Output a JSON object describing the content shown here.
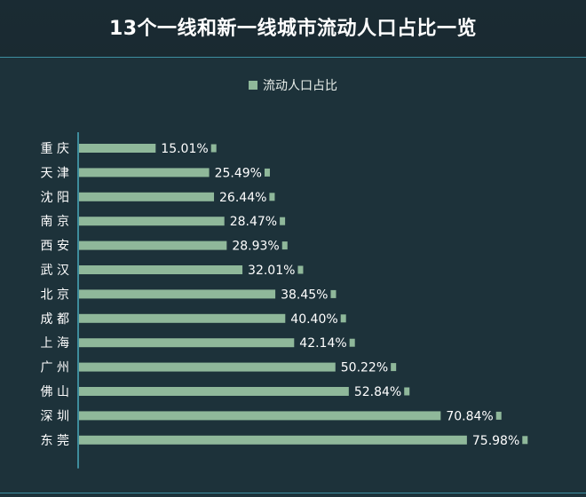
{
  "chart_data": {
    "type": "bar",
    "orientation": "horizontal",
    "title": "13个一线和新一线城市流动人口占比一览",
    "legend": [
      "流动人口占比"
    ],
    "legend_position": "top-center",
    "categories": [
      "重庆",
      "天津",
      "沈阳",
      "南京",
      "西安",
      "武汉",
      "北京",
      "成都",
      "上海",
      "广州",
      "佛山",
      "深圳",
      "东莞"
    ],
    "category_labels": [
      "重 庆",
      "天 津",
      "沈 阳",
      "南 京",
      "西 安",
      "武 汉",
      "北 京",
      "成 都",
      "上 海",
      "广 州",
      "佛 山",
      "深 圳",
      "东 莞"
    ],
    "series": [
      {
        "name": "流动人口占比",
        "values": [
          15.01,
          25.49,
          26.44,
          28.47,
          28.93,
          32.01,
          38.45,
          40.4,
          42.14,
          50.22,
          52.84,
          70.84,
          75.98
        ],
        "labels": [
          "15.01%",
          "25.49%",
          "26.44%",
          "28.47%",
          "28.93%",
          "32.01%",
          "38.45%",
          "40.40%",
          "42.14%",
          "50.22%",
          "52.84%",
          "70.84%",
          "75.98%"
        ]
      }
    ],
    "unit": "%",
    "xlim": [
      0,
      100
    ],
    "grid": false,
    "colors": {
      "bar": "#8fb89a",
      "axis": "#4aa9bd",
      "label": "#ffffff",
      "background": "#1d323a"
    }
  }
}
